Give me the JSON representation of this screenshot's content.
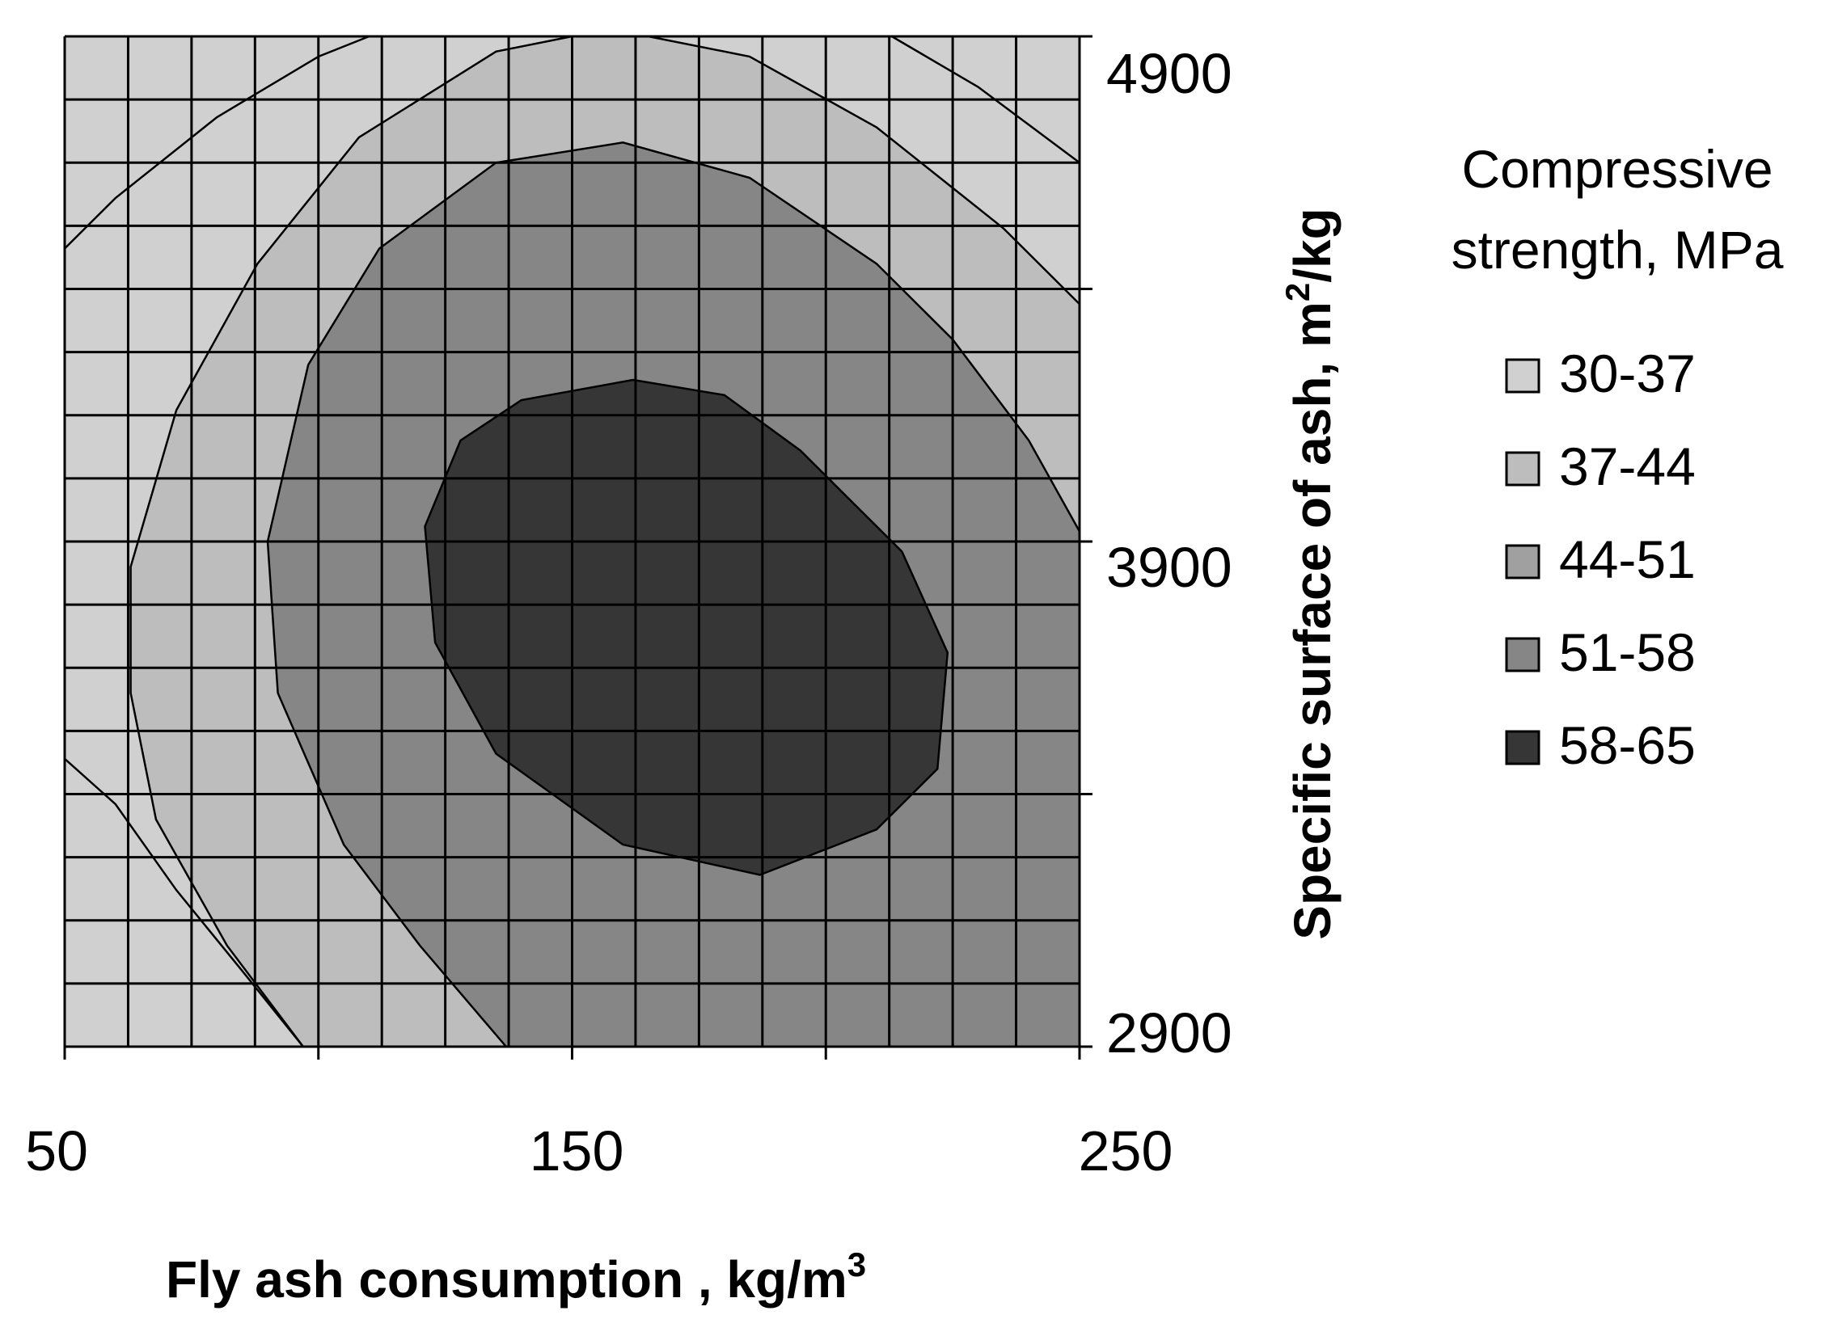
{
  "chart_data": {
    "type": "contour",
    "title": "",
    "xlabel": "Fly ash consumption , kg/m",
    "xlabel_sup": "3",
    "ylabel": "Specific surface of ash, m",
    "ylabel_sup": "2",
    "ylabel_tail": "/kg",
    "xlim": [
      50,
      250
    ],
    "ylim": [
      2900,
      4900
    ],
    "x_tick_labels": [
      "50",
      "150",
      "250"
    ],
    "y_tick_labels": [
      "4900",
      "3900",
      "2900"
    ],
    "grid": true,
    "legend_position": "right",
    "legend_title_line1": "Compressive",
    "legend_title_line2": "strength, MPa",
    "levels": [
      {
        "label": "30-37",
        "range": [
          30,
          37
        ],
        "color": "#d0d0d0"
      },
      {
        "label": "37-44",
        "range": [
          37,
          44
        ],
        "color": "#bdbdbd"
      },
      {
        "label": "44-51",
        "range": [
          44,
          51
        ],
        "color": "#a0a0a0"
      },
      {
        "label": "51-58",
        "range": [
          51,
          58
        ],
        "color": "#868686"
      },
      {
        "label": "58-65",
        "range": [
          58,
          65
        ],
        "color": "#363636"
      }
    ],
    "contours": [
      {
        "level": 37,
        "points": [
          [
            50,
            4480
          ],
          [
            60,
            4580
          ],
          [
            80,
            4740
          ],
          [
            100,
            4860
          ],
          [
            110,
            4900
          ]
        ]
      },
      {
        "level": 37,
        "points": [
          [
            50,
            3470
          ],
          [
            60,
            3380
          ],
          [
            72,
            3210
          ],
          [
            85,
            3050
          ],
          [
            97,
            2900
          ]
        ]
      },
      {
        "level": 37,
        "points": [
          [
            213,
            4900
          ],
          [
            230,
            4800
          ],
          [
            250,
            4650
          ]
        ]
      },
      {
        "level": 44,
        "points": [
          [
            97,
            2900
          ],
          [
            82,
            3100
          ],
          [
            68,
            3350
          ],
          [
            63,
            3600
          ],
          [
            63,
            3850
          ],
          [
            72,
            4160
          ],
          [
            88,
            4450
          ],
          [
            108,
            4700
          ],
          [
            135,
            4870
          ],
          [
            150,
            4900
          ],
          [
            165,
            4900
          ],
          [
            185,
            4860
          ],
          [
            210,
            4720
          ],
          [
            235,
            4520
          ],
          [
            250,
            4370
          ]
        ]
      },
      {
        "level": 44,
        "points": [
          [
            250,
            3920
          ],
          [
            240,
            4100
          ],
          [
            225,
            4300
          ],
          [
            210,
            4450
          ],
          [
            185,
            4620
          ],
          [
            160,
            4690
          ],
          [
            135,
            4650
          ],
          [
            112,
            4480
          ],
          [
            98,
            4250
          ],
          [
            90,
            3900
          ],
          [
            92,
            3600
          ],
          [
            105,
            3300
          ],
          [
            120,
            3100
          ],
          [
            137,
            2900
          ]
        ]
      },
      {
        "level": 51,
        "points": [
          [
            162,
            4220
          ],
          [
            140,
            4180
          ],
          [
            128,
            4100
          ],
          [
            121,
            3930
          ],
          [
            123,
            3700
          ],
          [
            135,
            3480
          ],
          [
            160,
            3300
          ],
          [
            187,
            3240
          ],
          [
            210,
            3330
          ],
          [
            222,
            3450
          ],
          [
            224,
            3680
          ],
          [
            215,
            3880
          ],
          [
            195,
            4080
          ],
          [
            180,
            4190
          ],
          [
            162,
            4220
          ]
        ]
      }
    ]
  }
}
